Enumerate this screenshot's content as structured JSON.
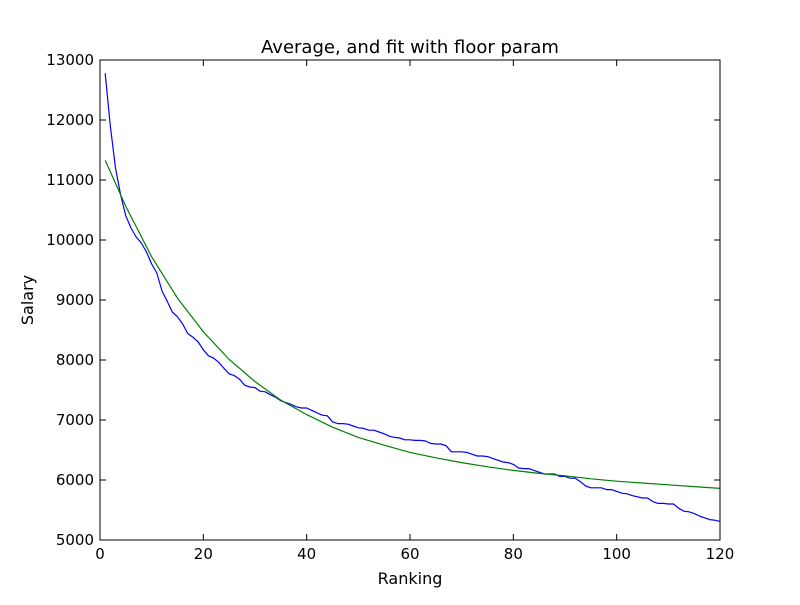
{
  "chart_data": {
    "type": "line",
    "title": "Average, and fit with floor param",
    "xlabel": "Ranking",
    "ylabel": "Salary",
    "xlim": [
      0,
      120
    ],
    "ylim": [
      5000,
      13000
    ],
    "xticks": [
      0,
      20,
      40,
      60,
      80,
      100,
      120
    ],
    "yticks": [
      5000,
      6000,
      7000,
      8000,
      9000,
      10000,
      11000,
      12000,
      13000
    ],
    "xtick_labels": [
      "0",
      "20",
      "40",
      "60",
      "80",
      "100",
      "120"
    ],
    "ytick_labels": [
      "5000",
      "6000",
      "7000",
      "8000",
      "9000",
      "10000",
      "11000",
      "12000",
      "13000"
    ],
    "grid": false,
    "legend": "none",
    "series": [
      {
        "color": "#0000ff",
        "points": [
          [
            1,
            12780
          ],
          [
            2,
            11900
          ],
          [
            3,
            11200
          ],
          [
            4,
            10750
          ],
          [
            5,
            10400
          ],
          [
            6,
            10200
          ],
          [
            7,
            10050
          ],
          [
            8,
            9950
          ],
          [
            9,
            9800
          ],
          [
            10,
            9600
          ],
          [
            11,
            9450
          ],
          [
            12,
            9150
          ],
          [
            13,
            8980
          ],
          [
            14,
            8800
          ],
          [
            15,
            8720
          ],
          [
            16,
            8600
          ],
          [
            17,
            8440
          ],
          [
            18,
            8380
          ],
          [
            19,
            8300
          ],
          [
            20,
            8170
          ],
          [
            21,
            8070
          ],
          [
            22,
            8030
          ],
          [
            23,
            7960
          ],
          [
            24,
            7860
          ],
          [
            25,
            7770
          ],
          [
            26,
            7740
          ],
          [
            27,
            7680
          ],
          [
            28,
            7580
          ],
          [
            29,
            7550
          ],
          [
            30,
            7540
          ],
          [
            31,
            7480
          ],
          [
            32,
            7470
          ],
          [
            33,
            7420
          ],
          [
            34,
            7380
          ],
          [
            35,
            7320
          ],
          [
            36,
            7290
          ],
          [
            37,
            7260
          ],
          [
            38,
            7220
          ],
          [
            39,
            7200
          ],
          [
            40,
            7200
          ],
          [
            41,
            7160
          ],
          [
            42,
            7120
          ],
          [
            43,
            7080
          ],
          [
            44,
            7070
          ],
          [
            45,
            6970
          ],
          [
            46,
            6940
          ],
          [
            47,
            6940
          ],
          [
            48,
            6930
          ],
          [
            49,
            6900
          ],
          [
            50,
            6870
          ],
          [
            51,
            6860
          ],
          [
            52,
            6830
          ],
          [
            53,
            6830
          ],
          [
            54,
            6800
          ],
          [
            55,
            6770
          ],
          [
            56,
            6730
          ],
          [
            57,
            6710
          ],
          [
            58,
            6700
          ],
          [
            59,
            6670
          ],
          [
            60,
            6670
          ],
          [
            61,
            6660
          ],
          [
            62,
            6660
          ],
          [
            63,
            6650
          ],
          [
            64,
            6610
          ],
          [
            65,
            6600
          ],
          [
            66,
            6600
          ],
          [
            67,
            6570
          ],
          [
            68,
            6470
          ],
          [
            69,
            6470
          ],
          [
            70,
            6470
          ],
          [
            71,
            6460
          ],
          [
            72,
            6430
          ],
          [
            73,
            6400
          ],
          [
            74,
            6400
          ],
          [
            75,
            6390
          ],
          [
            76,
            6360
          ],
          [
            77,
            6330
          ],
          [
            78,
            6300
          ],
          [
            79,
            6290
          ],
          [
            80,
            6260
          ],
          [
            81,
            6200
          ],
          [
            82,
            6190
          ],
          [
            83,
            6190
          ],
          [
            84,
            6160
          ],
          [
            85,
            6130
          ],
          [
            86,
            6100
          ],
          [
            87,
            6100
          ],
          [
            88,
            6100
          ],
          [
            89,
            6060
          ],
          [
            90,
            6060
          ],
          [
            91,
            6030
          ],
          [
            92,
            6030
          ],
          [
            93,
            5970
          ],
          [
            94,
            5900
          ],
          [
            95,
            5870
          ],
          [
            96,
            5870
          ],
          [
            97,
            5870
          ],
          [
            98,
            5840
          ],
          [
            99,
            5840
          ],
          [
            100,
            5810
          ],
          [
            101,
            5780
          ],
          [
            102,
            5770
          ],
          [
            103,
            5740
          ],
          [
            104,
            5720
          ],
          [
            105,
            5700
          ],
          [
            106,
            5700
          ],
          [
            107,
            5640
          ],
          [
            108,
            5610
          ],
          [
            109,
            5610
          ],
          [
            110,
            5600
          ],
          [
            111,
            5600
          ],
          [
            112,
            5530
          ],
          [
            113,
            5480
          ],
          [
            114,
            5470
          ],
          [
            115,
            5440
          ],
          [
            116,
            5400
          ],
          [
            117,
            5370
          ],
          [
            118,
            5340
          ],
          [
            119,
            5330
          ],
          [
            120,
            5310
          ]
        ]
      },
      {
        "color": "#008000",
        "points": [
          [
            1,
            11330
          ],
          [
            5,
            10560
          ],
          [
            10,
            9720
          ],
          [
            15,
            9030
          ],
          [
            20,
            8470
          ],
          [
            25,
            8010
          ],
          [
            30,
            7640
          ],
          [
            35,
            7330
          ],
          [
            40,
            7090
          ],
          [
            45,
            6880
          ],
          [
            50,
            6710
          ],
          [
            55,
            6580
          ],
          [
            60,
            6460
          ],
          [
            65,
            6370
          ],
          [
            70,
            6290
          ],
          [
            75,
            6220
          ],
          [
            80,
            6160
          ],
          [
            85,
            6110
          ],
          [
            90,
            6070
          ],
          [
            95,
            6020
          ],
          [
            100,
            5980
          ],
          [
            105,
            5950
          ],
          [
            110,
            5920
          ],
          [
            115,
            5890
          ],
          [
            120,
            5860
          ]
        ]
      }
    ]
  }
}
